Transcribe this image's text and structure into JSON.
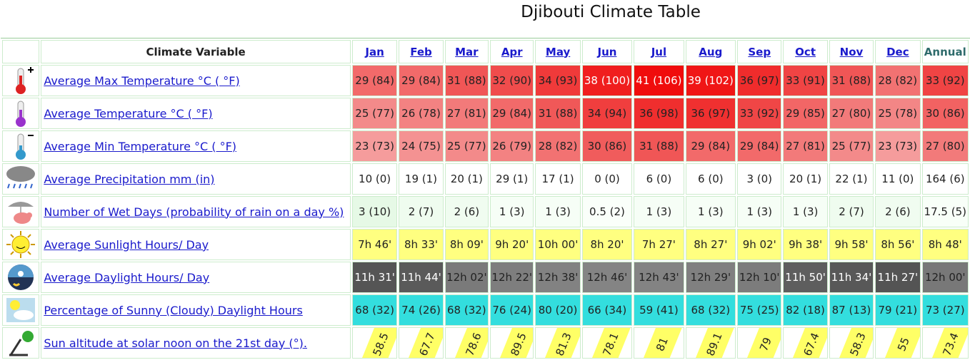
{
  "title": "Djibouti Climate Table",
  "table": {
    "header": [
      "Climate Variable",
      "Jan",
      "Feb",
      "Mar",
      "Apr",
      "May",
      "Jun",
      "Jul",
      "Aug",
      "Sep",
      "Oct",
      "Nov",
      "Dec",
      "Annual"
    ],
    "rows": [
      {
        "label": "Average Max Temperature °C ( °F)",
        "values": [
          "29 (84)",
          "29 (84)",
          "31 (88)",
          "32 (90)",
          "34 (93)",
          "38 (100)",
          "41 (106)",
          "39 (102)",
          "36 (97)",
          "33 (91)",
          "31 (88)",
          "28 (82)",
          "33 (92)"
        ],
        "colors": [
          "#f26a6a",
          "#f26a6a",
          "#f05656",
          "#f04c4c",
          "#f03a3a",
          "#f01e1e",
          "#f00c0c",
          "#f01616",
          "#f02c2c",
          "#f04444",
          "#f05656",
          "#f27272",
          "#f04444"
        ]
      },
      {
        "label": "Average Temperature °C ( °F)",
        "values": [
          "25 (77)",
          "26 (78)",
          "27 (81)",
          "29 (84)",
          "31 (88)",
          "34 (94)",
          "36 (98)",
          "36 (97)",
          "33 (92)",
          "29 (85)",
          "27 (80)",
          "25 (78)",
          "30 (86)"
        ],
        "colors": [
          "#f38a8a",
          "#f38282",
          "#f27a7a",
          "#f26a6a",
          "#f05858",
          "#f03e3e",
          "#f02e2e",
          "#f03030",
          "#f04646",
          "#f26666",
          "#f27a7a",
          "#f38686",
          "#f26262"
        ]
      },
      {
        "label": "Average Min Temperature °C ( °F)",
        "values": [
          "23 (73)",
          "24 (75)",
          "25 (77)",
          "26 (79)",
          "28 (82)",
          "30 (86)",
          "31 (88)",
          "29 (84)",
          "29 (84)",
          "27 (81)",
          "25 (77)",
          "23 (73)",
          "27 (80)"
        ],
        "colors": [
          "#f59c9c",
          "#f49292",
          "#f38a8a",
          "#f38282",
          "#f27272",
          "#f05c5c",
          "#f05656",
          "#f26a6a",
          "#f26a6a",
          "#f27a7a",
          "#f38a8a",
          "#f59c9c",
          "#f27a7a"
        ]
      },
      {
        "label": "Average Precipitation mm (in)",
        "values": [
          "10 (0)",
          "19 (1)",
          "20 (1)",
          "29 (1)",
          "17 (1)",
          "0 (0)",
          "6 (0)",
          "6 (0)",
          "3 (0)",
          "20 (1)",
          "22 (1)",
          "11 (0)",
          "164 (6)"
        ],
        "color": "#ffffff"
      },
      {
        "label": "Number of Wet Days (probability of rain on a day %)",
        "values": [
          "3 (10)",
          "2 (7)",
          "2 (6)",
          "1 (3)",
          "1 (3)",
          "0.5 (2)",
          "1 (3)",
          "1 (3)",
          "1 (3)",
          "1 (3)",
          "2 (7)",
          "2 (6)",
          "17.5 (5)"
        ],
        "colors": [
          "#e6f9e6",
          "#effcef",
          "#f0fcf0",
          "#f6fef6",
          "#f6fef6",
          "#fafffa",
          "#f6fef6",
          "#f6fef6",
          "#f6fef6",
          "#f6fef6",
          "#effcef",
          "#f0fcf0",
          "#f8fff8"
        ]
      },
      {
        "label": "Average Sunlight Hours/ Day",
        "values": [
          "7h 46'",
          "8h 33'",
          "8h 09'",
          "9h 20'",
          "10h 00'",
          "8h 20'",
          "7h 27'",
          "8h 27'",
          "9h 02'",
          "9h 38'",
          "9h 58'",
          "8h 56'",
          "8h 48'"
        ],
        "color": "#ffff80"
      },
      {
        "label": "Average Daylight Hours/ Day",
        "values": [
          "11h 31'",
          "11h 44'",
          "12h 02'",
          "12h 22'",
          "12h 38'",
          "12h 46'",
          "12h 43'",
          "12h 29'",
          "12h 10'",
          "11h 50'",
          "11h 34'",
          "11h 27'",
          "12h 00'"
        ],
        "colors": [
          "#555555",
          "#5a5a5a",
          "#7a7a7a",
          "#7e7e7e",
          "#828282",
          "#848484",
          "#838383",
          "#808080",
          "#7c7c7c",
          "#5e5e5e",
          "#585858",
          "#545454",
          "#787878"
        ]
      },
      {
        "label": "Percentage of Sunny (Cloudy) Daylight Hours",
        "values": [
          "68 (32)",
          "74 (26)",
          "68 (32)",
          "76 (24)",
          "80 (20)",
          "66 (34)",
          "59 (41)",
          "68 (32)",
          "75 (25)",
          "82 (18)",
          "87 (13)",
          "79 (21)",
          "73 (27)"
        ],
        "color": "#33dede"
      },
      {
        "label": "Sun altitude at solar noon on the 21st day (°).",
        "values": [
          "58.5",
          "67.7",
          "78.6",
          "89.5",
          "81.3",
          "78.1",
          "81",
          "89.1",
          "79",
          "67.4",
          "58.3",
          "55",
          "73.4"
        ],
        "color": "#ffff66",
        "rotated": true
      }
    ]
  }
}
